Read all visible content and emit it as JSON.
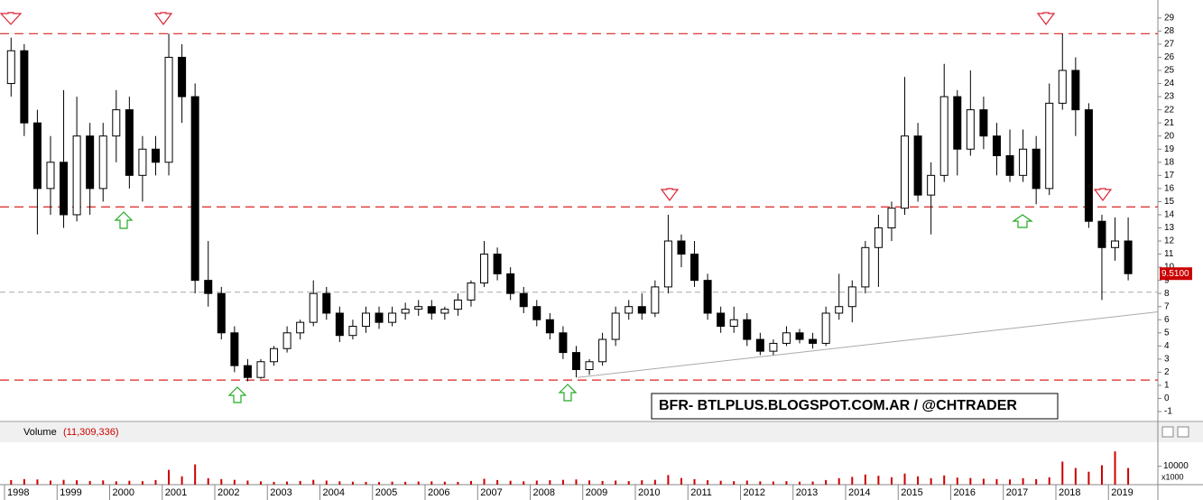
{
  "chart_data": {
    "type": "candlestick",
    "x": [
      1998.125,
      1998.375,
      1998.625,
      1998.875,
      1999.125,
      1999.375,
      1999.625,
      1999.875,
      2000.125,
      2000.375,
      2000.625,
      2000.875,
      2001.125,
      2001.375,
      2001.625,
      2001.875,
      2002.125,
      2002.375,
      2002.625,
      2002.875,
      2003.125,
      2003.375,
      2003.625,
      2003.875,
      2004.125,
      2004.375,
      2004.625,
      2004.875,
      2005.125,
      2005.375,
      2005.625,
      2005.875,
      2006.125,
      2006.375,
      2006.625,
      2006.875,
      2007.125,
      2007.375,
      2007.625,
      2007.875,
      2008.125,
      2008.375,
      2008.625,
      2008.875,
      2009.125,
      2009.375,
      2009.625,
      2009.875,
      2010.125,
      2010.375,
      2010.625,
      2010.875,
      2011.125,
      2011.375,
      2011.625,
      2011.875,
      2012.125,
      2012.375,
      2012.625,
      2012.875,
      2013.125,
      2013.375,
      2013.625,
      2013.875,
      2014.125,
      2014.375,
      2014.625,
      2014.875,
      2015.125,
      2015.375,
      2015.625,
      2015.875,
      2016.125,
      2016.375,
      2016.625,
      2016.875,
      2017.125,
      2017.375,
      2017.625,
      2017.875,
      2018.125,
      2018.375,
      2018.625,
      2018.875,
      2019.125,
      2019.375
    ],
    "open": [
      24,
      26.5,
      21,
      16,
      18,
      14,
      20,
      16,
      20,
      22,
      17,
      19,
      18,
      26,
      23,
      9,
      8,
      5,
      2.5,
      1.6,
      2.8,
      3.8,
      5,
      5.8,
      8,
      6.5,
      4.8,
      5.5,
      6.5,
      5.8,
      6.5,
      6.8,
      7,
      6.5,
      6.8,
      7.5,
      8.8,
      11,
      9.5,
      8,
      7,
      6,
      5,
      3.5,
      2.2,
      2.8,
      4.5,
      6.5,
      7,
      6.5,
      8.5,
      12,
      11,
      9,
      6.5,
      5.5,
      6,
      4.5,
      3.6,
      4.2,
      5,
      4.5,
      4.2,
      6.5,
      7,
      8.5,
      11.5,
      13,
      14.5,
      20,
      15.5,
      17,
      23,
      19,
      22,
      20,
      18.5,
      17,
      19,
      16,
      22.5,
      25,
      22,
      13.5,
      11.5,
      12
    ],
    "high": [
      27.5,
      27,
      22,
      20,
      23.5,
      23,
      21,
      21,
      23.5,
      23,
      20,
      20,
      27.8,
      27,
      24,
      12,
      8.5,
      5.5,
      3,
      3,
      4,
      5.5,
      6,
      9,
      8.5,
      7,
      6,
      7,
      7,
      7,
      7.3,
      7.5,
      7.5,
      7,
      8,
      9,
      12,
      11.5,
      10,
      8.5,
      7.5,
      6.5,
      5.5,
      4,
      3,
      5,
      7,
      7.5,
      8,
      9,
      14,
      12.5,
      12,
      9.5,
      7,
      7,
      6.5,
      5,
      4.5,
      5.5,
      5.3,
      5,
      7,
      9.5,
      9,
      12,
      14,
      15,
      24.5,
      21,
      18,
      25.5,
      23.5,
      25,
      23,
      21,
      20.5,
      20.5,
      20,
      24,
      27.8,
      26,
      22.5,
      14,
      13.8,
      13.8
    ],
    "low": [
      23,
      20,
      12.5,
      14,
      13,
      13.5,
      14,
      15,
      18,
      16,
      15,
      17,
      17,
      21,
      8,
      7,
      4.5,
      2,
      1.3,
      1.5,
      2.5,
      3.5,
      4.5,
      5.5,
      6,
      4.3,
      4.5,
      5,
      5.3,
      5.5,
      6,
      6.3,
      6,
      6,
      6.3,
      7,
      8.5,
      9,
      7.5,
      6.5,
      5.5,
      4.5,
      3,
      1.6,
      1.8,
      2.5,
      4,
      6,
      6,
      6.2,
      8,
      10,
      8.5,
      6,
      5,
      5,
      4,
      3.3,
      3.3,
      4,
      4.2,
      3.8,
      4,
      6,
      5.8,
      8,
      8.5,
      12,
      14,
      15,
      12.5,
      16.5,
      17,
      18.5,
      19,
      17,
      16.5,
      16.5,
      14.8,
      15.5,
      22,
      20,
      13,
      7.5,
      10.5,
      9
    ],
    "close": [
      26.5,
      21,
      16,
      18,
      14,
      20,
      16,
      20,
      22,
      17,
      19,
      18,
      26,
      23,
      9,
      8,
      5,
      2.5,
      1.6,
      2.8,
      3.8,
      5,
      5.8,
      8,
      6.5,
      4.8,
      5.5,
      6.5,
      5.8,
      6.5,
      6.8,
      7,
      6.5,
      6.8,
      7.5,
      8.8,
      11,
      9.5,
      8,
      7,
      6,
      5,
      3.5,
      2.2,
      2.8,
      4.5,
      6.5,
      7,
      6.5,
      8.5,
      12,
      11,
      9,
      6.5,
      5.5,
      6,
      4.5,
      3.6,
      4.2,
      5,
      4.5,
      4.2,
      6.5,
      7,
      8.5,
      11.5,
      13,
      14.5,
      20,
      15.5,
      17,
      23,
      19,
      22,
      20,
      18.5,
      17,
      19,
      16,
      22.5,
      25,
      22,
      13.5,
      11.5,
      12,
      9.51
    ],
    "volume": [
      2500,
      3000,
      2800,
      2200,
      2600,
      2400,
      2000,
      2300,
      1800,
      2100,
      1900,
      2500,
      8000,
      4500,
      11000,
      3500,
      3000,
      2600,
      2200,
      1800,
      1500,
      1700,
      2000,
      2600,
      2200,
      1800,
      1600,
      1500,
      1400,
      1600,
      1500,
      1700,
      1800,
      1600,
      1500,
      2000,
      3200,
      2500,
      2100,
      1800,
      2200,
      2400,
      2600,
      2800,
      2300,
      2000,
      2200,
      1900,
      2400,
      2600,
      5200,
      3600,
      3000,
      2400,
      2100,
      1900,
      2200,
      1800,
      1700,
      1900,
      1600,
      1700,
      2500,
      3500,
      4200,
      5500,
      4800,
      4000,
      6000,
      4500,
      3500,
      5000,
      3800,
      3600,
      3200,
      3000,
      2800,
      3500,
      3000,
      4000,
      12500,
      9000,
      7000,
      10500,
      18000,
      9000
    ],
    "ylim": [
      -1.48,
      30.16
    ],
    "yticks": [
      -1,
      0,
      1,
      2,
      3,
      4,
      5,
      6,
      7,
      8,
      9,
      10,
      11,
      12,
      13,
      14,
      15,
      16,
      17,
      18,
      19,
      20,
      21,
      22,
      23,
      24,
      25,
      26,
      27,
      28,
      29
    ],
    "xlim": [
      1997.914,
      2019.94
    ],
    "xticks": [
      1998,
      1999,
      2000,
      2001,
      2002,
      2003,
      2004,
      2005,
      2006,
      2007,
      2008,
      2009,
      2010,
      2011,
      2012,
      2013,
      2014,
      2015,
      2016,
      2017,
      2018,
      2019
    ],
    "volume_ylim": [
      0,
      22000
    ],
    "volume_yticks": [
      10000
    ],
    "volume_scale_label": "x1000",
    "volume_title": "Volume",
    "volume_total_label": "(11,309,336)",
    "last_price": {
      "value": 9.51,
      "label": "9.5100"
    },
    "resistance_levels": [
      27.8,
      14.6,
      1.4
    ],
    "reference_level": 8.1,
    "trendline": {
      "x": [
        2008.9,
        2019.94
      ],
      "y": [
        1.6,
        6.6
      ]
    },
    "watermark": "BFR- BTLPLUS.BLOGSPOT.COM.AR / @CHTRADER",
    "up_color": "#ffffff",
    "down_color": "#000000"
  }
}
